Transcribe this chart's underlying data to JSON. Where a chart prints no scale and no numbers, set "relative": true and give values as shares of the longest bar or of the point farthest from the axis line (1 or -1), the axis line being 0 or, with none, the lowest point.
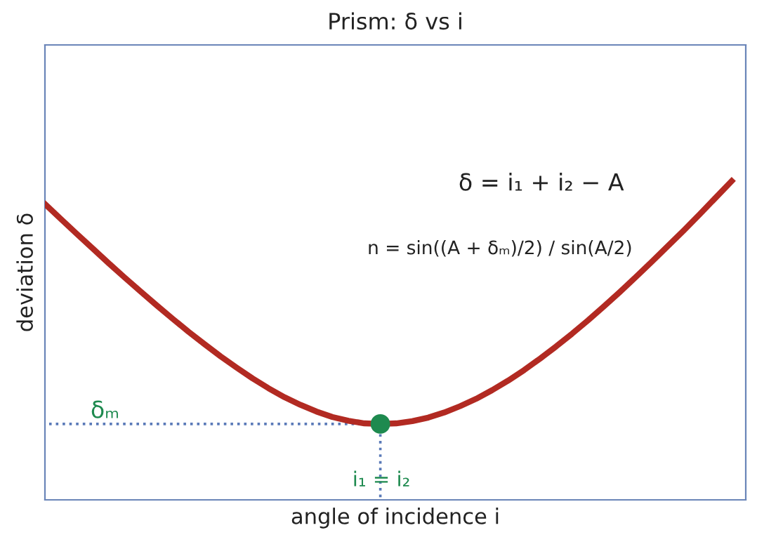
{
  "chart_data": {
    "type": "line",
    "title": "Prism: δ vs i",
    "xlabel": "angle of incidence i",
    "ylabel": "deviation δ",
    "relative": true,
    "categories": [
      null,
      null,
      null,
      null,
      null,
      null,
      null,
      null,
      null,
      null,
      null,
      null,
      null,
      null,
      null,
      null,
      null,
      null,
      null,
      null,
      null,
      null,
      null,
      null,
      null,
      null,
      null,
      null,
      null,
      null,
      null,
      null,
      null,
      null,
      null,
      null,
      null,
      null,
      null,
      null,
      null,
      null,
      null,
      null
    ],
    "series": [
      {
        "color": "#b22a22",
        "values": [
          0.928,
          0.881,
          0.834,
          0.788,
          0.742,
          0.697,
          0.653,
          0.61,
          0.568,
          0.527,
          0.488,
          0.45,
          0.415,
          0.381,
          0.35,
          0.322,
          0.298,
          0.277,
          0.26,
          0.248,
          0.24,
          0.238,
          0.24,
          0.247,
          0.258,
          0.274,
          0.294,
          0.317,
          0.344,
          0.374,
          0.407,
          0.443,
          0.481,
          0.521,
          0.563,
          0.607,
          0.652,
          0.699,
          0.747,
          0.796,
          0.845,
          0.896,
          0.948,
          1.0
        ]
      },
      {
        "color": "#1e8a4f",
        "marker": "circle",
        "values": [
          null,
          null,
          null,
          null,
          null,
          null,
          null,
          null,
          null,
          null,
          null,
          null,
          null,
          null,
          null,
          null,
          null,
          null,
          null,
          null,
          null,
          0.238,
          null,
          null,
          null,
          null,
          null,
          null,
          null,
          null,
          null,
          null,
          null,
          null,
          null,
          null,
          null,
          null,
          null,
          null,
          null,
          null,
          null,
          null
        ]
      }
    ],
    "ref_lines": [
      {
        "axis": "y",
        "value": 0.238,
        "color": "#5a7ab8",
        "line_style": "dotted"
      }
    ],
    "annotations": [
      "δ = i₁ + i₂ − A",
      "n = sin((A + δₘ)/2) / sin(A/2)",
      "δₘ",
      "i₁ = i₂"
    ],
    "legend": false
  }
}
